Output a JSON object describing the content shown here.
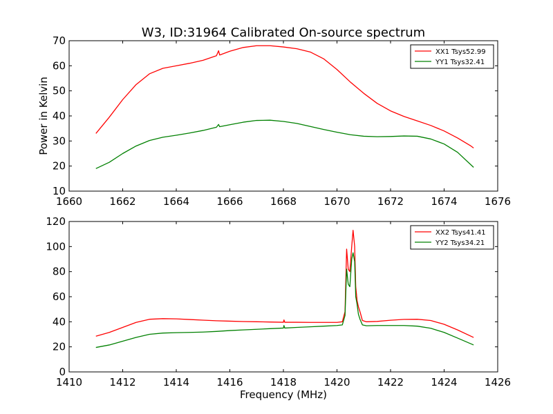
{
  "chart_data": [
    {
      "type": "line",
      "title": "W3, ID:31964 Calibrated On-source spectrum",
      "xlabel": "",
      "ylabel": "Power in Kelvin",
      "xlim": [
        1660,
        1676
      ],
      "ylim": [
        10,
        70
      ],
      "xticks": [
        1660,
        1662,
        1664,
        1666,
        1668,
        1670,
        1672,
        1674,
        1676
      ],
      "yticks": [
        10,
        20,
        30,
        40,
        50,
        60,
        70
      ],
      "legend_position": "upper right",
      "series": [
        {
          "name": "XX1 Tsys52.99",
          "color": "#ff0000",
          "points": [
            [
              1661.0,
              33.0
            ],
            [
              1661.5,
              39.5
            ],
            [
              1662.0,
              46.5
            ],
            [
              1662.5,
              52.5
            ],
            [
              1663.0,
              56.8
            ],
            [
              1663.5,
              59.0
            ],
            [
              1664.0,
              60.0
            ],
            [
              1664.5,
              61.0
            ],
            [
              1665.0,
              62.2
            ],
            [
              1665.5,
              64.0
            ],
            [
              1665.58,
              66.0
            ],
            [
              1665.62,
              64.3
            ],
            [
              1666.0,
              65.8
            ],
            [
              1666.5,
              67.3
            ],
            [
              1667.0,
              68.0
            ],
            [
              1667.5,
              68.0
            ],
            [
              1668.0,
              67.5
            ],
            [
              1668.5,
              66.8
            ],
            [
              1669.0,
              65.5
            ],
            [
              1669.5,
              62.8
            ],
            [
              1670.0,
              58.5
            ],
            [
              1670.5,
              53.5
            ],
            [
              1671.0,
              49.0
            ],
            [
              1671.5,
              45.0
            ],
            [
              1672.0,
              42.0
            ],
            [
              1672.5,
              39.8
            ],
            [
              1673.0,
              38.0
            ],
            [
              1673.5,
              36.2
            ],
            [
              1674.0,
              34.0
            ],
            [
              1674.5,
              31.2
            ],
            [
              1675.0,
              28.0
            ],
            [
              1675.1,
              27.2
            ]
          ]
        },
        {
          "name": "YY1 Tsys32.41",
          "color": "#008000",
          "points": [
            [
              1661.0,
              19.0
            ],
            [
              1661.5,
              21.5
            ],
            [
              1662.0,
              25.0
            ],
            [
              1662.5,
              28.0
            ],
            [
              1663.0,
              30.2
            ],
            [
              1663.5,
              31.5
            ],
            [
              1664.0,
              32.3
            ],
            [
              1664.5,
              33.2
            ],
            [
              1665.0,
              34.2
            ],
            [
              1665.5,
              35.5
            ],
            [
              1665.58,
              36.6
            ],
            [
              1665.62,
              35.7
            ],
            [
              1666.0,
              36.5
            ],
            [
              1666.5,
              37.5
            ],
            [
              1667.0,
              38.2
            ],
            [
              1667.5,
              38.3
            ],
            [
              1668.0,
              37.8
            ],
            [
              1668.5,
              37.0
            ],
            [
              1669.0,
              35.8
            ],
            [
              1669.5,
              34.6
            ],
            [
              1670.0,
              33.5
            ],
            [
              1670.5,
              32.5
            ],
            [
              1671.0,
              31.9
            ],
            [
              1671.5,
              31.7
            ],
            [
              1672.0,
              31.8
            ],
            [
              1672.5,
              32.0
            ],
            [
              1673.0,
              31.9
            ],
            [
              1673.5,
              30.8
            ],
            [
              1674.0,
              28.8
            ],
            [
              1674.5,
              25.5
            ],
            [
              1675.1,
              19.5
            ]
          ]
        }
      ]
    },
    {
      "type": "line",
      "title": "",
      "xlabel": "Frequency (MHz)",
      "ylabel": "",
      "xlim": [
        1410,
        1426
      ],
      "ylim": [
        0,
        120
      ],
      "xticks": [
        1410,
        1412,
        1414,
        1416,
        1418,
        1420,
        1422,
        1424,
        1426
      ],
      "yticks": [
        0,
        20,
        40,
        60,
        80,
        100,
        120
      ],
      "legend_position": "upper right",
      "series": [
        {
          "name": "XX2 Tsys41.41",
          "color": "#ff0000",
          "points": [
            [
              1411.0,
              28.5
            ],
            [
              1411.5,
              31.5
            ],
            [
              1412.0,
              35.5
            ],
            [
              1412.5,
              39.5
            ],
            [
              1413.0,
              42.0
            ],
            [
              1413.5,
              42.5
            ],
            [
              1414.0,
              42.3
            ],
            [
              1414.5,
              41.8
            ],
            [
              1415.0,
              41.3
            ],
            [
              1415.5,
              40.8
            ],
            [
              1416.0,
              40.5
            ],
            [
              1416.5,
              40.2
            ],
            [
              1417.0,
              40.0
            ],
            [
              1417.5,
              39.8
            ],
            [
              1418.0,
              39.6
            ],
            [
              1418.02,
              41.5
            ],
            [
              1418.05,
              39.6
            ],
            [
              1418.5,
              39.6
            ],
            [
              1419.0,
              39.5
            ],
            [
              1419.5,
              39.5
            ],
            [
              1420.0,
              39.5
            ],
            [
              1420.2,
              40.0
            ],
            [
              1420.3,
              48.0
            ],
            [
              1420.36,
              98.0
            ],
            [
              1420.42,
              82.0
            ],
            [
              1420.48,
              80.0
            ],
            [
              1420.55,
              100.0
            ],
            [
              1420.6,
              113.0
            ],
            [
              1420.66,
              100.0
            ],
            [
              1420.7,
              68.0
            ],
            [
              1420.75,
              57.0
            ],
            [
              1420.8,
              52.0
            ],
            [
              1420.86,
              48.0
            ],
            [
              1420.95,
              41.0
            ],
            [
              1421.1,
              40.0
            ],
            [
              1421.5,
              40.3
            ],
            [
              1422.0,
              41.2
            ],
            [
              1422.5,
              41.9
            ],
            [
              1423.0,
              42.0
            ],
            [
              1423.5,
              41.0
            ],
            [
              1424.0,
              38.0
            ],
            [
              1424.5,
              33.5
            ],
            [
              1425.1,
              27.5
            ]
          ]
        },
        {
          "name": "YY2 Tsys34.21",
          "color": "#008000",
          "points": [
            [
              1411.0,
              19.5
            ],
            [
              1411.5,
              21.5
            ],
            [
              1412.0,
              24.5
            ],
            [
              1412.5,
              27.5
            ],
            [
              1413.0,
              30.0
            ],
            [
              1413.5,
              31.0
            ],
            [
              1414.0,
              31.3
            ],
            [
              1414.5,
              31.5
            ],
            [
              1415.0,
              31.8
            ],
            [
              1415.5,
              32.3
            ],
            [
              1416.0,
              33.0
            ],
            [
              1416.5,
              33.5
            ],
            [
              1417.0,
              34.0
            ],
            [
              1417.5,
              34.5
            ],
            [
              1418.0,
              35.0
            ],
            [
              1418.02,
              37.0
            ],
            [
              1418.05,
              35.0
            ],
            [
              1418.5,
              35.5
            ],
            [
              1419.0,
              36.0
            ],
            [
              1419.5,
              36.5
            ],
            [
              1420.0,
              37.0
            ],
            [
              1420.2,
              37.5
            ],
            [
              1420.3,
              45.0
            ],
            [
              1420.36,
              82.0
            ],
            [
              1420.42,
              70.0
            ],
            [
              1420.48,
              68.0
            ],
            [
              1420.55,
              90.0
            ],
            [
              1420.6,
              95.0
            ],
            [
              1420.66,
              88.0
            ],
            [
              1420.7,
              60.0
            ],
            [
              1420.75,
              54.0
            ],
            [
              1420.8,
              46.0
            ],
            [
              1420.86,
              42.0
            ],
            [
              1420.95,
              37.5
            ],
            [
              1421.1,
              36.8
            ],
            [
              1421.5,
              37.0
            ],
            [
              1422.0,
              37.0
            ],
            [
              1422.5,
              37.0
            ],
            [
              1423.0,
              36.5
            ],
            [
              1423.5,
              34.8
            ],
            [
              1424.0,
              31.5
            ],
            [
              1424.5,
              27.0
            ],
            [
              1425.1,
              21.5
            ]
          ]
        }
      ]
    }
  ]
}
